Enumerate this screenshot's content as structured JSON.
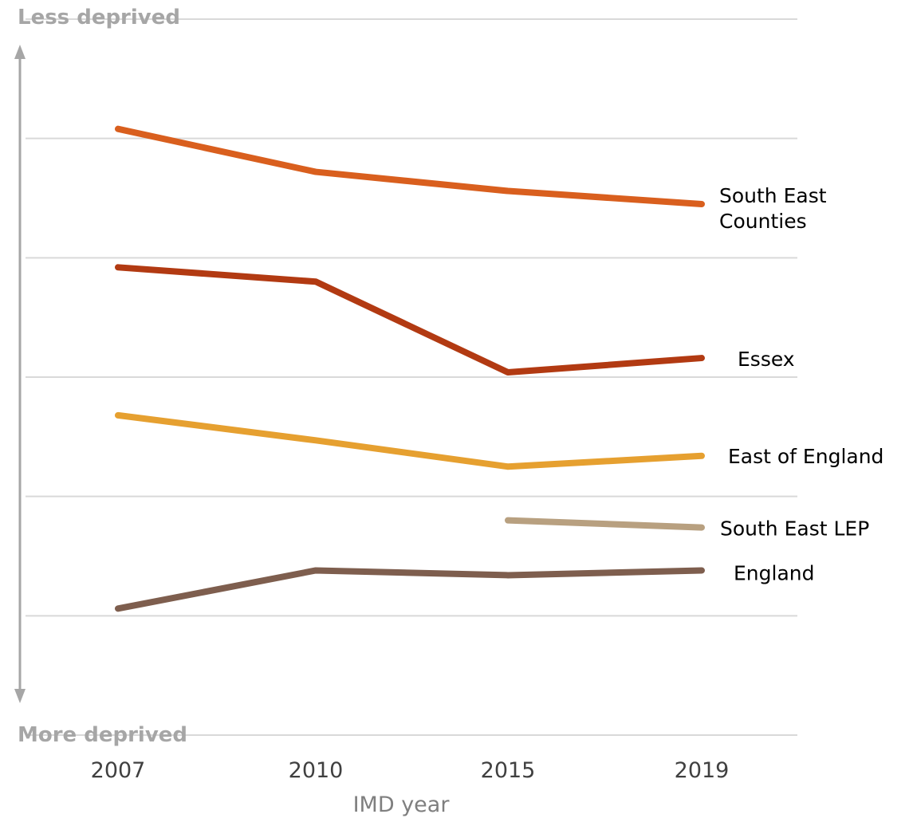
{
  "chart_data": {
    "type": "line",
    "title": "",
    "xlabel": "IMD year",
    "ylabel": "",
    "top_label": "Less deprived",
    "bottom_label": "More deprived",
    "categories": [
      "2007",
      "2010",
      "2015",
      "2019"
    ],
    "ylim": [
      0,
      6
    ],
    "grid": true,
    "legend": "labels at line ends (right)",
    "series": [
      {
        "name": "South East Counties",
        "name_lines": [
          "South East",
          "Counties"
        ],
        "color": "#d95f1e",
        "values": [
          5.08,
          4.72,
          4.56,
          4.45
        ]
      },
      {
        "name": "Essex",
        "name_lines": [
          "Essex"
        ],
        "color": "#b23a12",
        "values": [
          3.92,
          3.8,
          3.04,
          3.16
        ]
      },
      {
        "name": "East of England",
        "name_lines": [
          "East of England"
        ],
        "color": "#e6a030",
        "values": [
          2.68,
          2.47,
          2.25,
          2.34
        ]
      },
      {
        "name": "South East LEP",
        "name_lines": [
          "South East LEP"
        ],
        "color": "#b8a080",
        "values": [
          null,
          null,
          1.8,
          1.74
        ]
      },
      {
        "name": "England",
        "name_lines": [
          "England"
        ],
        "color": "#7e5e4e",
        "values": [
          1.06,
          1.38,
          1.34,
          1.38
        ]
      }
    ]
  }
}
